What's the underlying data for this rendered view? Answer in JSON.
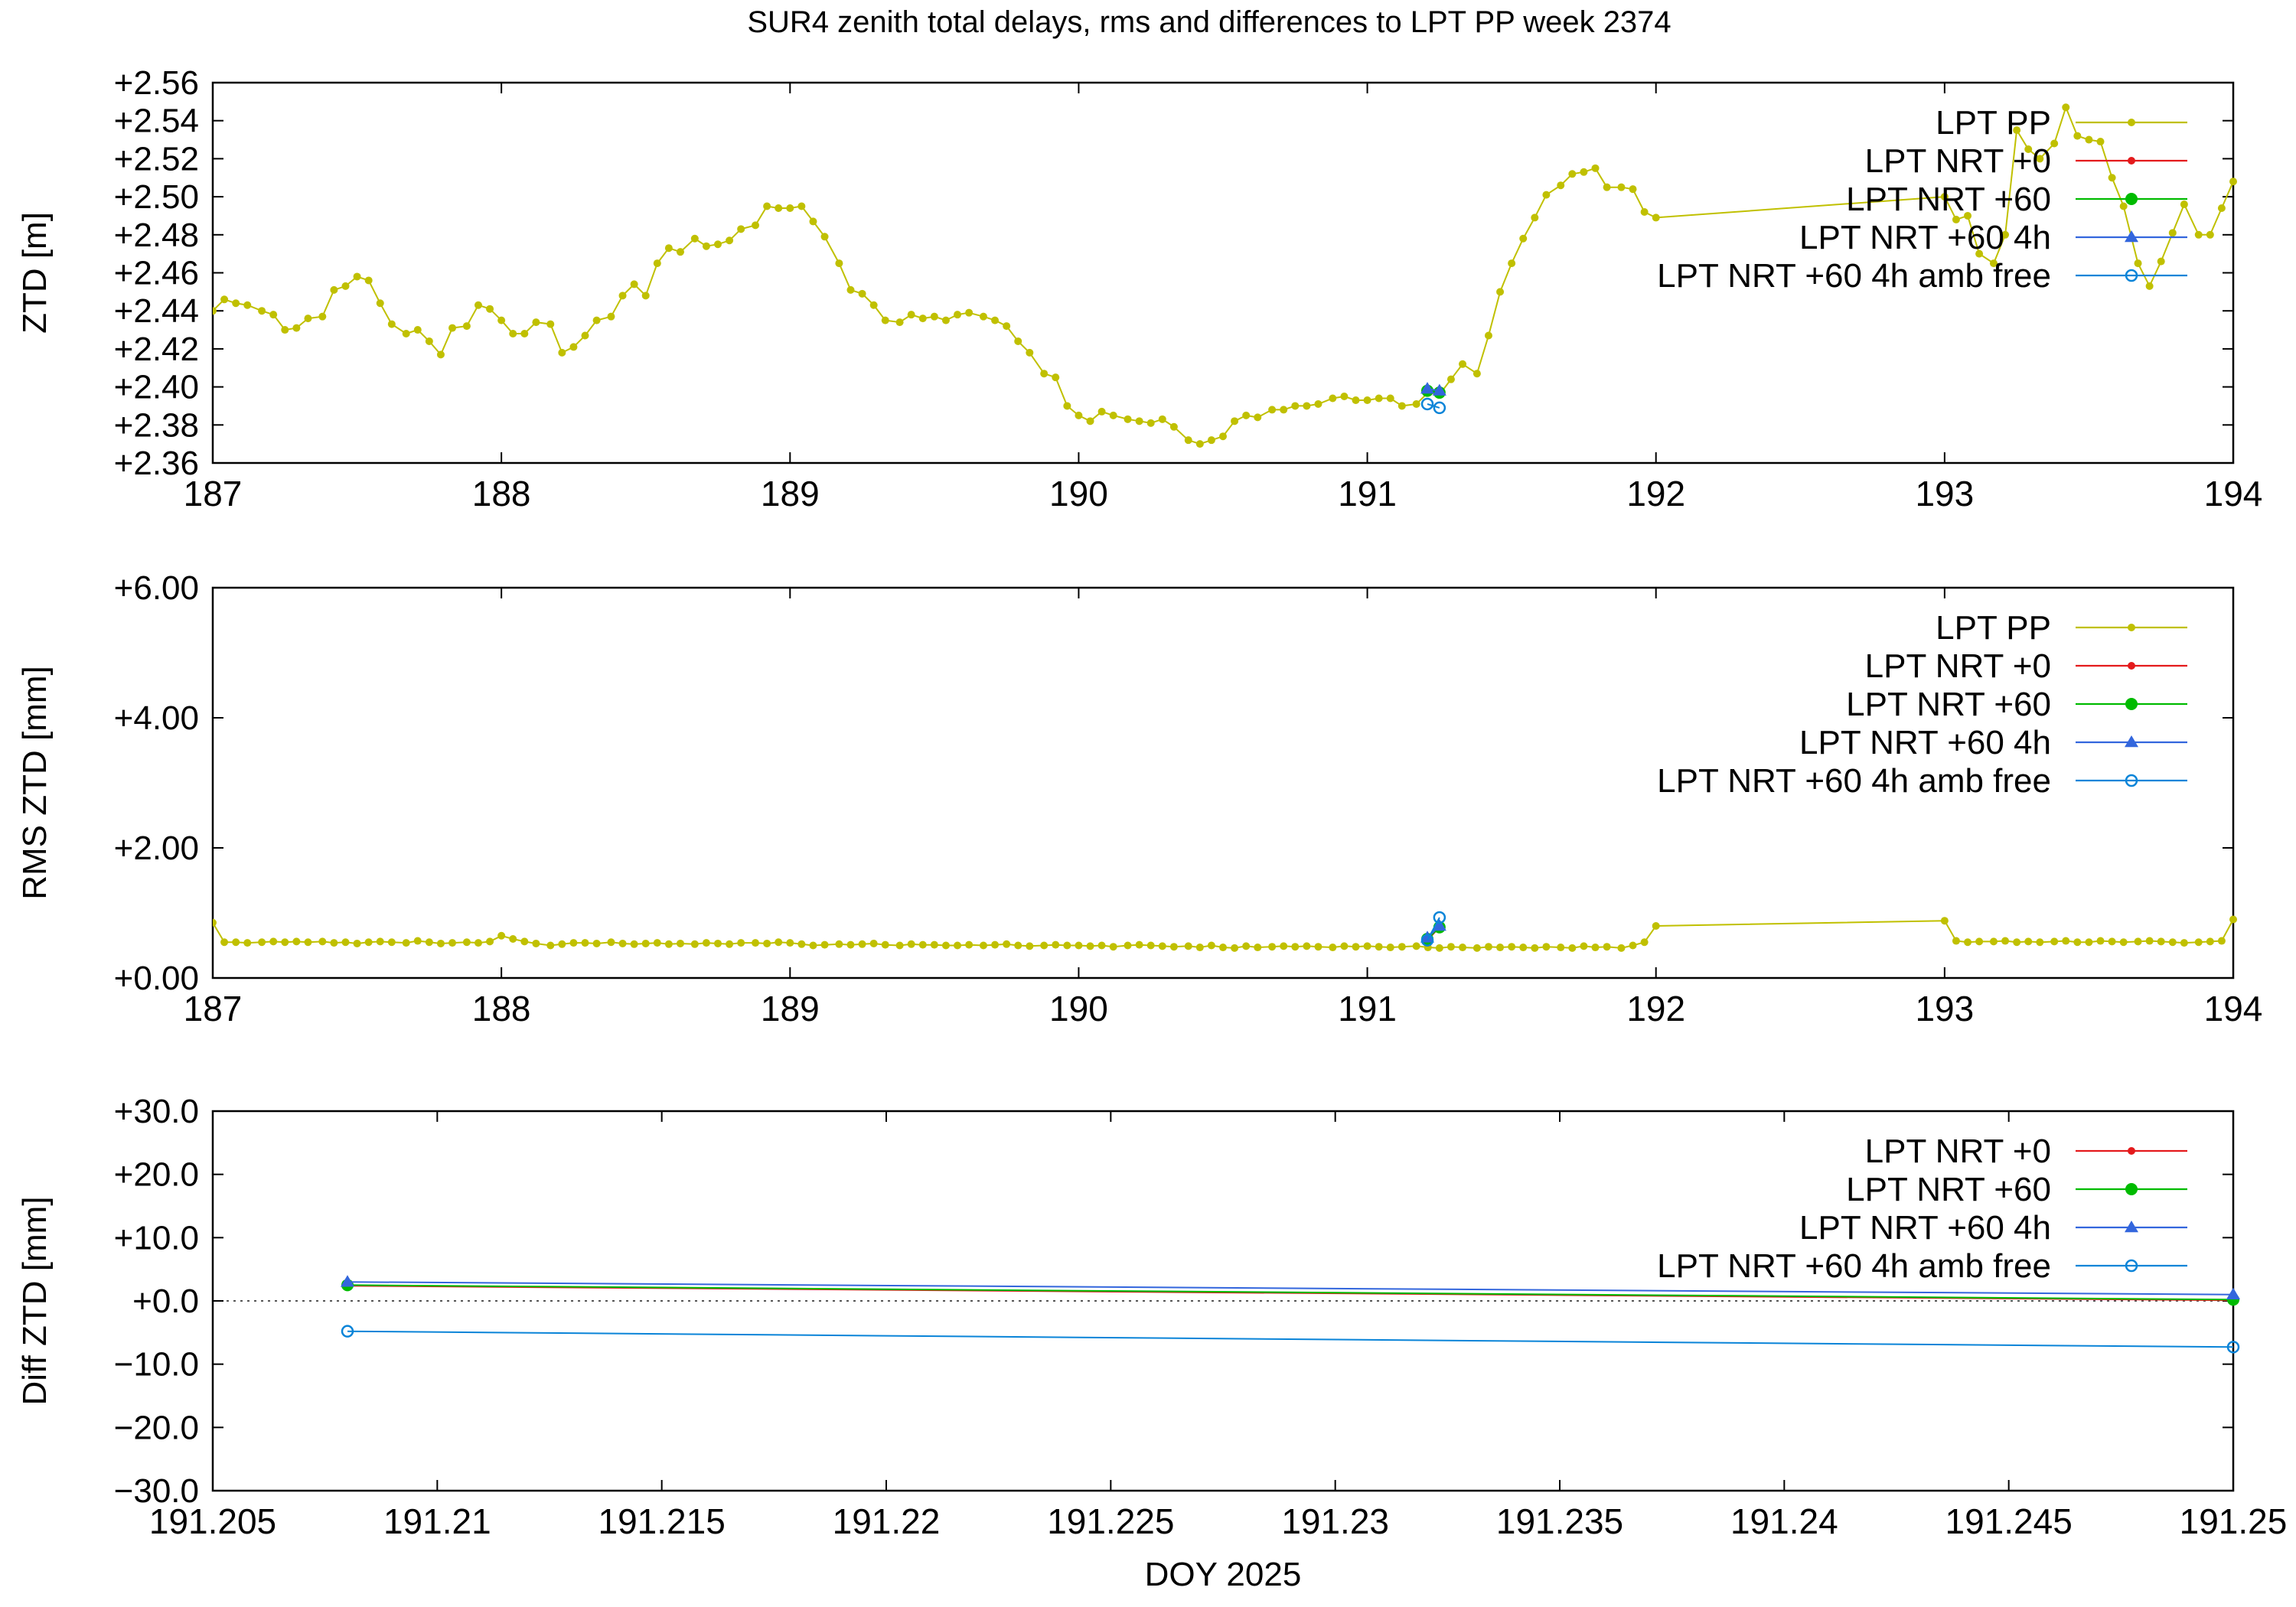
{
  "title": "SUR4 zenith total delays, rms and differences to LPT PP week 2374",
  "colors": {
    "lpt_pp": "#c0c000",
    "lpt_nrt_0": "#e41a1c",
    "lpt_nrt_60": "#00bb00",
    "lpt_nrt_60_4h": "#3366dd",
    "lpt_nrt_60_4h_amb_free": "#0a84d8"
  },
  "chart_data": [
    {
      "type": "line",
      "ylabel": "ZTD [m]",
      "xlim": [
        187,
        194
      ],
      "ylim": [
        2.36,
        2.56
      ],
      "x_ticks": [
        "187",
        "188",
        "189",
        "190",
        "191",
        "192",
        "193",
        "194"
      ],
      "y_ticks": [
        "+2.36",
        "+2.38",
        "+2.40",
        "+2.42",
        "+2.44",
        "+2.46",
        "+2.48",
        "+2.50",
        "+2.52",
        "+2.54",
        "+2.56"
      ],
      "legend": [
        "LPT PP",
        "LPT NRT +0",
        "LPT NRT +60",
        "LPT NRT +60 4h",
        "LPT NRT +60 4h amb free"
      ],
      "legend_position": "top-right",
      "grid": false,
      "series": [
        {
          "name": "LPT PP",
          "x": [
            187.0,
            187.04,
            187.08,
            187.12,
            187.17,
            187.21,
            187.25,
            187.29,
            187.33,
            187.38,
            187.42,
            187.46,
            187.5,
            187.54,
            187.58,
            187.62,
            187.67,
            187.71,
            187.75,
            187.79,
            187.83,
            187.88,
            187.92,
            187.96,
            188.0,
            188.04,
            188.08,
            188.12,
            188.17,
            188.21,
            188.25,
            188.29,
            188.33,
            188.38,
            188.42,
            188.46,
            188.5,
            188.54,
            188.58,
            188.62,
            188.67,
            188.71,
            188.75,
            188.79,
            188.83,
            188.88,
            188.92,
            188.96,
            189.0,
            189.04,
            189.08,
            189.12,
            189.17,
            189.21,
            189.25,
            189.29,
            189.33,
            189.38,
            189.42,
            189.46,
            189.5,
            189.54,
            189.58,
            189.62,
            189.67,
            189.71,
            189.75,
            189.79,
            189.83,
            189.88,
            189.92,
            189.96,
            190.0,
            190.04,
            190.08,
            190.12,
            190.17,
            190.21,
            190.25,
            190.29,
            190.33,
            190.38,
            190.42,
            190.46,
            190.5,
            190.54,
            190.58,
            190.62,
            190.67,
            190.71,
            190.75,
            190.79,
            190.83,
            190.88,
            190.92,
            190.96,
            191.0,
            191.04,
            191.08,
            191.12,
            191.17,
            191.21,
            191.25,
            191.29,
            191.33,
            191.38,
            191.42,
            191.46,
            191.5,
            191.54,
            191.58,
            191.62,
            191.67,
            191.71,
            191.75,
            191.79,
            191.83,
            191.88,
            191.92,
            191.96,
            192.0,
            193.0,
            193.04,
            193.08,
            193.12,
            193.17,
            193.21,
            193.25,
            193.29,
            193.33,
            193.38,
            193.42,
            193.46,
            193.5,
            193.54,
            193.58,
            193.62,
            193.67,
            193.71,
            193.75,
            193.79,
            193.83,
            193.88,
            193.92,
            193.96,
            194.0
          ],
          "y": [
            2.44,
            2.446,
            2.444,
            2.443,
            2.44,
            2.438,
            2.43,
            2.431,
            2.436,
            2.437,
            2.451,
            2.453,
            2.458,
            2.456,
            2.444,
            2.433,
            2.428,
            2.43,
            2.424,
            2.417,
            2.431,
            2.432,
            2.443,
            2.441,
            2.435,
            2.428,
            2.428,
            2.434,
            2.433,
            2.418,
            2.421,
            2.427,
            2.435,
            2.437,
            2.448,
            2.454,
            2.448,
            2.465,
            2.473,
            2.471,
            2.478,
            2.474,
            2.475,
            2.477,
            2.483,
            2.485,
            2.495,
            2.494,
            2.494,
            2.495,
            2.487,
            2.479,
            2.465,
            2.451,
            2.449,
            2.443,
            2.435,
            2.434,
            2.438,
            2.436,
            2.437,
            2.435,
            2.438,
            2.439,
            2.437,
            2.435,
            2.432,
            2.424,
            2.418,
            2.407,
            2.405,
            2.39,
            2.385,
            2.382,
            2.387,
            2.385,
            2.383,
            2.382,
            2.381,
            2.383,
            2.379,
            2.372,
            2.37,
            2.372,
            2.374,
            2.382,
            2.385,
            2.384,
            2.388,
            2.388,
            2.39,
            2.39,
            2.391,
            2.394,
            2.395,
            2.393,
            2.393,
            2.394,
            2.394,
            2.39,
            2.391,
            2.397,
            2.396,
            2.404,
            2.412,
            2.407,
            2.427,
            2.45,
            2.465,
            2.478,
            2.489,
            2.501,
            2.506,
            2.512,
            2.513,
            2.515,
            2.505,
            2.505,
            2.504,
            2.492,
            2.489,
            2.5,
            2.488,
            2.49,
            2.47,
            2.465,
            2.48,
            2.535,
            2.525,
            2.52,
            2.528,
            2.547,
            2.532,
            2.53,
            2.529,
            2.51,
            2.495,
            2.465,
            2.453,
            2.466,
            2.481,
            2.496,
            2.48,
            2.48,
            2.494,
            2.508
          ]
        },
        {
          "name": "LPT NRT +0",
          "x": [
            191.208,
            191.25
          ],
          "y": [
            2.398,
            2.397
          ]
        },
        {
          "name": "LPT NRT +60",
          "x": [
            191.208,
            191.25
          ],
          "y": [
            2.398,
            2.397
          ]
        },
        {
          "name": "LPT NRT +60 4h",
          "x": [
            191.208,
            191.25
          ],
          "y": [
            2.399,
            2.398
          ]
        },
        {
          "name": "LPT NRT +60 4h amb free",
          "x": [
            191.208,
            191.25
          ],
          "y": [
            2.391,
            2.389
          ]
        }
      ]
    },
    {
      "type": "line",
      "ylabel": "RMS ZTD [mm]",
      "xlim": [
        187,
        194
      ],
      "ylim": [
        0,
        6
      ],
      "x_ticks": [
        "187",
        "188",
        "189",
        "190",
        "191",
        "192",
        "193",
        "194"
      ],
      "y_ticks": [
        "+0.00",
        "+2.00",
        "+4.00",
        "+6.00"
      ],
      "legend": [
        "LPT PP",
        "LPT NRT +0",
        "LPT NRT +60",
        "LPT NRT +60 4h",
        "LPT NRT +60 4h amb free"
      ],
      "legend_position": "top-right",
      "grid": false,
      "series": [
        {
          "name": "LPT PP",
          "x": [
            187.0,
            187.04,
            187.08,
            187.12,
            187.17,
            187.21,
            187.25,
            187.29,
            187.33,
            187.38,
            187.42,
            187.46,
            187.5,
            187.54,
            187.58,
            187.62,
            187.67,
            187.71,
            187.75,
            187.79,
            187.83,
            187.88,
            187.92,
            187.96,
            188.0,
            188.04,
            188.08,
            188.12,
            188.17,
            188.21,
            188.25,
            188.29,
            188.33,
            188.38,
            188.42,
            188.46,
            188.5,
            188.54,
            188.58,
            188.62,
            188.67,
            188.71,
            188.75,
            188.79,
            188.83,
            188.88,
            188.92,
            188.96,
            189.0,
            189.04,
            189.08,
            189.12,
            189.17,
            189.21,
            189.25,
            189.29,
            189.33,
            189.38,
            189.42,
            189.46,
            189.5,
            189.54,
            189.58,
            189.62,
            189.67,
            189.71,
            189.75,
            189.79,
            189.83,
            189.88,
            189.92,
            189.96,
            190.0,
            190.04,
            190.08,
            190.12,
            190.17,
            190.21,
            190.25,
            190.29,
            190.33,
            190.38,
            190.42,
            190.46,
            190.5,
            190.54,
            190.58,
            190.62,
            190.67,
            190.71,
            190.75,
            190.79,
            190.83,
            190.88,
            190.92,
            190.96,
            191.0,
            191.04,
            191.08,
            191.12,
            191.17,
            191.21,
            191.25,
            191.29,
            191.33,
            191.38,
            191.42,
            191.46,
            191.5,
            191.54,
            191.58,
            191.62,
            191.67,
            191.71,
            191.75,
            191.79,
            191.83,
            191.88,
            191.92,
            191.96,
            192.0,
            193.0,
            193.04,
            193.08,
            193.12,
            193.17,
            193.21,
            193.25,
            193.29,
            193.33,
            193.38,
            193.42,
            193.46,
            193.5,
            193.54,
            193.58,
            193.62,
            193.67,
            193.71,
            193.75,
            193.79,
            193.83,
            193.88,
            193.92,
            193.96,
            194.0
          ],
          "y": [
            0.85,
            0.55,
            0.55,
            0.54,
            0.55,
            0.56,
            0.55,
            0.56,
            0.55,
            0.56,
            0.54,
            0.55,
            0.53,
            0.55,
            0.56,
            0.55,
            0.54,
            0.57,
            0.55,
            0.53,
            0.54,
            0.55,
            0.54,
            0.56,
            0.65,
            0.6,
            0.56,
            0.53,
            0.5,
            0.52,
            0.54,
            0.54,
            0.53,
            0.55,
            0.53,
            0.52,
            0.53,
            0.54,
            0.52,
            0.53,
            0.52,
            0.54,
            0.53,
            0.52,
            0.54,
            0.54,
            0.53,
            0.55,
            0.54,
            0.52,
            0.5,
            0.51,
            0.52,
            0.51,
            0.52,
            0.53,
            0.51,
            0.5,
            0.52,
            0.51,
            0.51,
            0.5,
            0.5,
            0.51,
            0.5,
            0.51,
            0.52,
            0.5,
            0.49,
            0.5,
            0.51,
            0.5,
            0.5,
            0.49,
            0.5,
            0.48,
            0.5,
            0.51,
            0.5,
            0.49,
            0.48,
            0.49,
            0.47,
            0.5,
            0.47,
            0.46,
            0.49,
            0.47,
            0.48,
            0.49,
            0.48,
            0.49,
            0.48,
            0.47,
            0.49,
            0.48,
            0.49,
            0.48,
            0.47,
            0.48,
            0.49,
            0.47,
            0.46,
            0.48,
            0.47,
            0.46,
            0.48,
            0.47,
            0.48,
            0.47,
            0.46,
            0.48,
            0.47,
            0.46,
            0.49,
            0.47,
            0.48,
            0.46,
            0.5,
            0.55,
            0.8,
            0.88,
            0.57,
            0.55,
            0.56,
            0.56,
            0.57,
            0.55,
            0.56,
            0.55,
            0.56,
            0.57,
            0.55,
            0.55,
            0.57,
            0.56,
            0.55,
            0.56,
            0.57,
            0.56,
            0.55,
            0.54,
            0.55,
            0.56,
            0.57,
            0.9
          ]
        },
        {
          "name": "LPT NRT +0",
          "x": [
            191.208,
            191.25
          ],
          "y": [
            0.58,
            0.78
          ]
        },
        {
          "name": "LPT NRT +60",
          "x": [
            191.208,
            191.25
          ],
          "y": [
            0.6,
            0.78
          ]
        },
        {
          "name": "LPT NRT +60 4h",
          "x": [
            191.208,
            191.25
          ],
          "y": [
            0.62,
            0.8
          ]
        },
        {
          "name": "LPT NRT +60 4h amb free",
          "x": [
            191.208,
            191.25
          ],
          "y": [
            0.58,
            0.93
          ]
        }
      ]
    },
    {
      "type": "line",
      "ylabel": "Diff ZTD [mm]",
      "xlabel": "DOY 2025",
      "xlim": [
        191.205,
        191.25
      ],
      "ylim": [
        -30,
        30
      ],
      "x_ticks": [
        "191.205",
        "191.21",
        "191.215",
        "191.22",
        "191.225",
        "191.23",
        "191.235",
        "191.24",
        "191.245",
        "191.25"
      ],
      "y_ticks": [
        "−30.0",
        "−20.0",
        "−10.0",
        "+0.0",
        "+10.0",
        "+20.0",
        "+30.0"
      ],
      "legend": [
        "LPT NRT +0",
        "LPT NRT +60",
        "LPT NRT +60 4h",
        "LPT NRT +60 4h amb free"
      ],
      "legend_position": "top-right",
      "zero_line": "dotted",
      "grid": false,
      "series": [
        {
          "name": "LPT NRT +0",
          "x": [
            191.208,
            191.25
          ],
          "y": [
            2.4,
            0.1
          ]
        },
        {
          "name": "LPT NRT +60",
          "x": [
            191.208,
            191.25
          ],
          "y": [
            2.5,
            0.2
          ]
        },
        {
          "name": "LPT NRT +60 4h",
          "x": [
            191.208,
            191.25
          ],
          "y": [
            3.0,
            1.0
          ]
        },
        {
          "name": "LPT NRT +60 4h amb free",
          "x": [
            191.208,
            191.25
          ],
          "y": [
            -4.8,
            -7.3
          ]
        }
      ]
    }
  ]
}
